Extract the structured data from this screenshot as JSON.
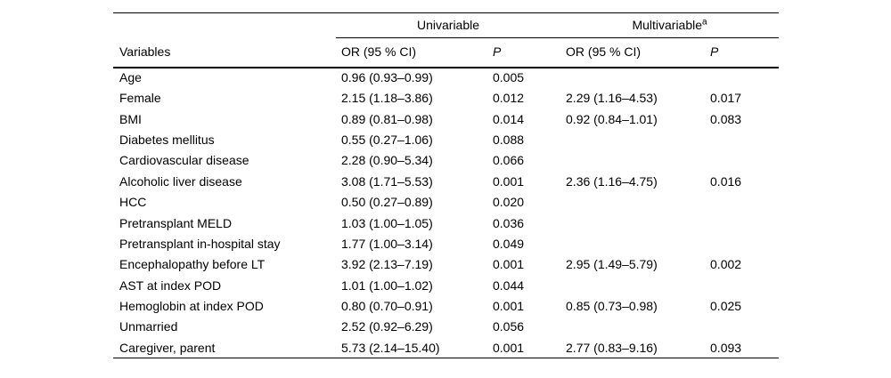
{
  "table": {
    "spanners": {
      "univariable": "Univariable",
      "multivariable": "Multivariable",
      "multivariable_superscript": "a"
    },
    "headers": {
      "variables": "Variables",
      "or_ci": "OR (95 % CI)",
      "p": "P"
    },
    "rows": [
      {
        "variable": "Age",
        "uni_or": "0.96 (0.93–0.99)",
        "uni_p": "0.005",
        "multi_or": "",
        "multi_p": ""
      },
      {
        "variable": "Female",
        "uni_or": "2.15 (1.18–3.86)",
        "uni_p": "0.012",
        "multi_or": "2.29 (1.16–4.53)",
        "multi_p": "0.017"
      },
      {
        "variable": "BMI",
        "uni_or": "0.89 (0.81–0.98)",
        "uni_p": "0.014",
        "multi_or": "0.92 (0.84–1.01)",
        "multi_p": "0.083"
      },
      {
        "variable": "Diabetes mellitus",
        "uni_or": "0.55 (0.27–1.06)",
        "uni_p": "0.088",
        "multi_or": "",
        "multi_p": ""
      },
      {
        "variable": "Cardiovascular disease",
        "uni_or": "2.28 (0.90–5.34)",
        "uni_p": "0.066",
        "multi_or": "",
        "multi_p": ""
      },
      {
        "variable": "Alcoholic liver disease",
        "uni_or": "3.08 (1.71–5.53)",
        "uni_p": "0.001",
        "multi_or": "2.36 (1.16–4.75)",
        "multi_p": "0.016"
      },
      {
        "variable": "HCC",
        "uni_or": "0.50 (0.27–0.89)",
        "uni_p": "0.020",
        "multi_or": "",
        "multi_p": ""
      },
      {
        "variable": "Pretransplant MELD",
        "uni_or": "1.03 (1.00–1.05)",
        "uni_p": "0.036",
        "multi_or": "",
        "multi_p": ""
      },
      {
        "variable": "Pretransplant in-hospital stay",
        "uni_or": "1.77 (1.00–3.14)",
        "uni_p": "0.049",
        "multi_or": "",
        "multi_p": ""
      },
      {
        "variable": "Encephalopathy before LT",
        "uni_or": "3.92 (2.13–7.19)",
        "uni_p": "0.001",
        "multi_or": "2.95 (1.49–5.79)",
        "multi_p": "0.002"
      },
      {
        "variable": "AST at index POD",
        "uni_or": "1.01 (1.00–1.02)",
        "uni_p": "0.044",
        "multi_or": "",
        "multi_p": ""
      },
      {
        "variable": "Hemoglobin at index POD",
        "uni_or": "0.80 (0.70–0.91)",
        "uni_p": "0.001",
        "multi_or": "0.85 (0.73–0.98)",
        "multi_p": "0.025"
      },
      {
        "variable": "Unmarried",
        "uni_or": "2.52 (0.92–6.29)",
        "uni_p": "0.056",
        "multi_or": "",
        "multi_p": ""
      },
      {
        "variable": "Caregiver, parent",
        "uni_or": "5.73 (2.14–15.40)",
        "uni_p": "0.001",
        "multi_or": "2.77 (0.83–9.16)",
        "multi_p": "0.093"
      }
    ],
    "colors": {
      "text": "#000000",
      "rules": "#000000",
      "background": "#ffffff"
    }
  }
}
